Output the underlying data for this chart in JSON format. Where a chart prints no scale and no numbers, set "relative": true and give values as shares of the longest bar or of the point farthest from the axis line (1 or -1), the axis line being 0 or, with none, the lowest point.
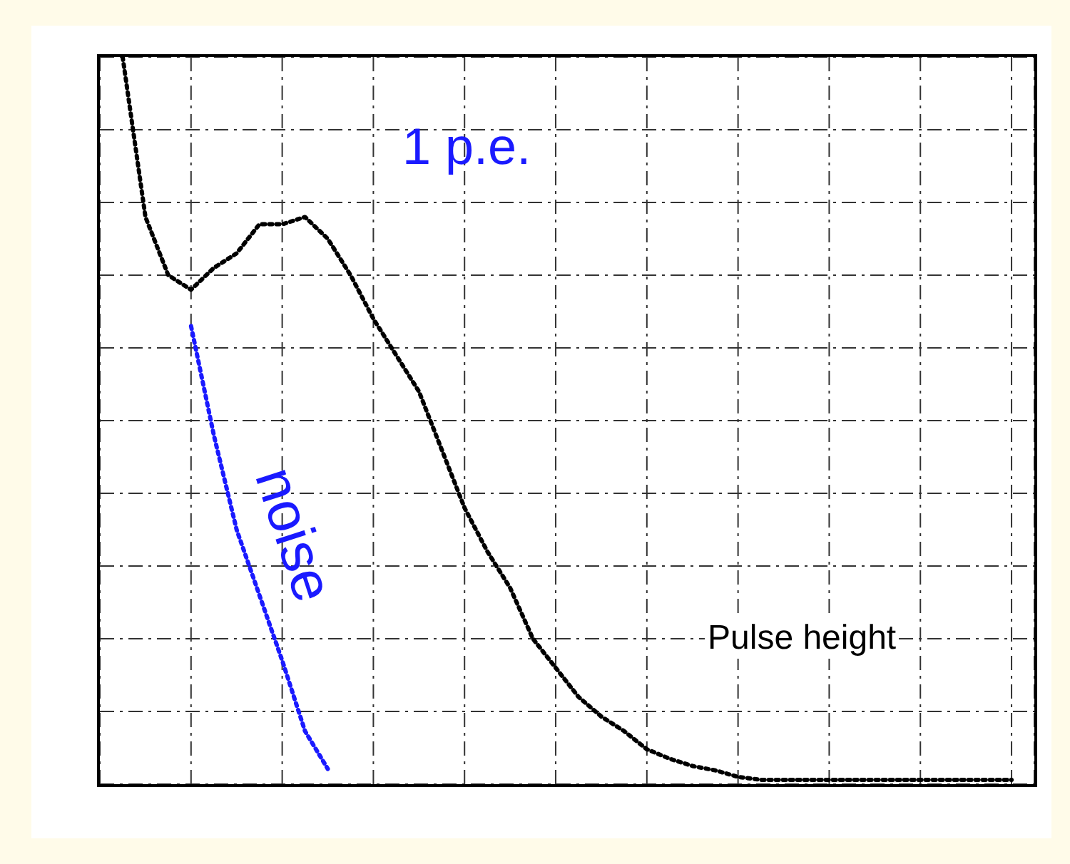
{
  "chart_data": {
    "type": "line",
    "relative": true,
    "xlabel": "Pulse height",
    "annotations": [
      "1 p.e."
    ],
    "grid": true,
    "categories": [
      null,
      null,
      null,
      null,
      null,
      null,
      null,
      null,
      null,
      null,
      null,
      null,
      null,
      null,
      null,
      null,
      null,
      null,
      null,
      null,
      null,
      null,
      null,
      null,
      null,
      null,
      null,
      null,
      null,
      null,
      null,
      null,
      null,
      null,
      null,
      null,
      null,
      null,
      null,
      null,
      null,
      null
    ],
    "series": [
      {
        "color": "#000000",
        "line_style": "dotted",
        "values": [
          null,
          1.0,
          0.78,
          0.7,
          0.68,
          0.71,
          0.73,
          0.77,
          0.77,
          0.78,
          0.75,
          0.7,
          0.64,
          0.59,
          0.54,
          0.46,
          0.38,
          0.32,
          0.27,
          0.2,
          0.16,
          0.12,
          0.093,
          0.073,
          0.048,
          0.035,
          0.025,
          0.019,
          0.01,
          0.006,
          0.006,
          0.006,
          0.006,
          0.006,
          0.006,
          0.006,
          0.006,
          0.006,
          0.006,
          0.006,
          0.006,
          null
        ]
      },
      {
        "name": "noise",
        "line_style": "dotted",
        "color": "#1a1aff",
        "values": [
          null,
          null,
          null,
          null,
          0.63,
          0.48,
          0.35,
          0.26,
          0.17,
          0.073,
          0.021,
          null,
          null,
          null,
          null,
          null,
          null,
          null,
          null,
          null,
          null,
          null,
          null,
          null,
          null,
          null,
          null,
          null,
          null,
          null,
          null,
          null,
          null,
          null,
          null,
          null,
          null,
          null,
          null,
          null,
          null,
          null
        ]
      }
    ]
  }
}
